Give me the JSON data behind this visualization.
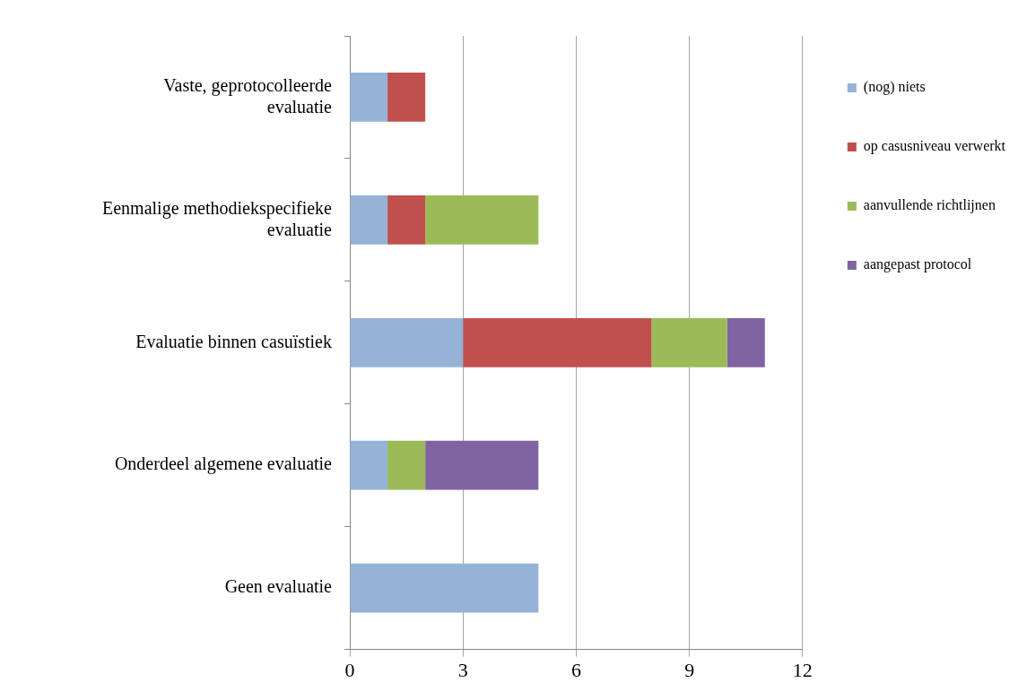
{
  "chart_data": {
    "type": "bar",
    "orientation": "horizontal",
    "stacked": true,
    "categories": [
      "Vaste, geprotocolleerde evaluatie",
      "Eenmalige methodiekspecifieke evaluatie",
      "Evaluatie binnen casuïstiek",
      "Onderdeel algemene evaluatie",
      "Geen evaluatie"
    ],
    "series": [
      {
        "name": "(nog) niets",
        "color": "#95b3d7",
        "values": [
          1,
          1,
          3,
          1,
          5
        ]
      },
      {
        "name": "op casusniveau verwerkt",
        "color": "#c0504d",
        "values": [
          1,
          1,
          5,
          0,
          0
        ]
      },
      {
        "name": "aanvullende richtlijnen",
        "color": "#9bbb59",
        "values": [
          0,
          3,
          2,
          1,
          0
        ]
      },
      {
        "name": "aangepast protocol",
        "color": "#8064a2",
        "values": [
          0,
          0,
          1,
          3,
          0
        ]
      }
    ],
    "xlim": [
      0,
      12
    ],
    "xticks": [
      0,
      3,
      6,
      9,
      12
    ],
    "grid": "x",
    "legend": "right"
  }
}
